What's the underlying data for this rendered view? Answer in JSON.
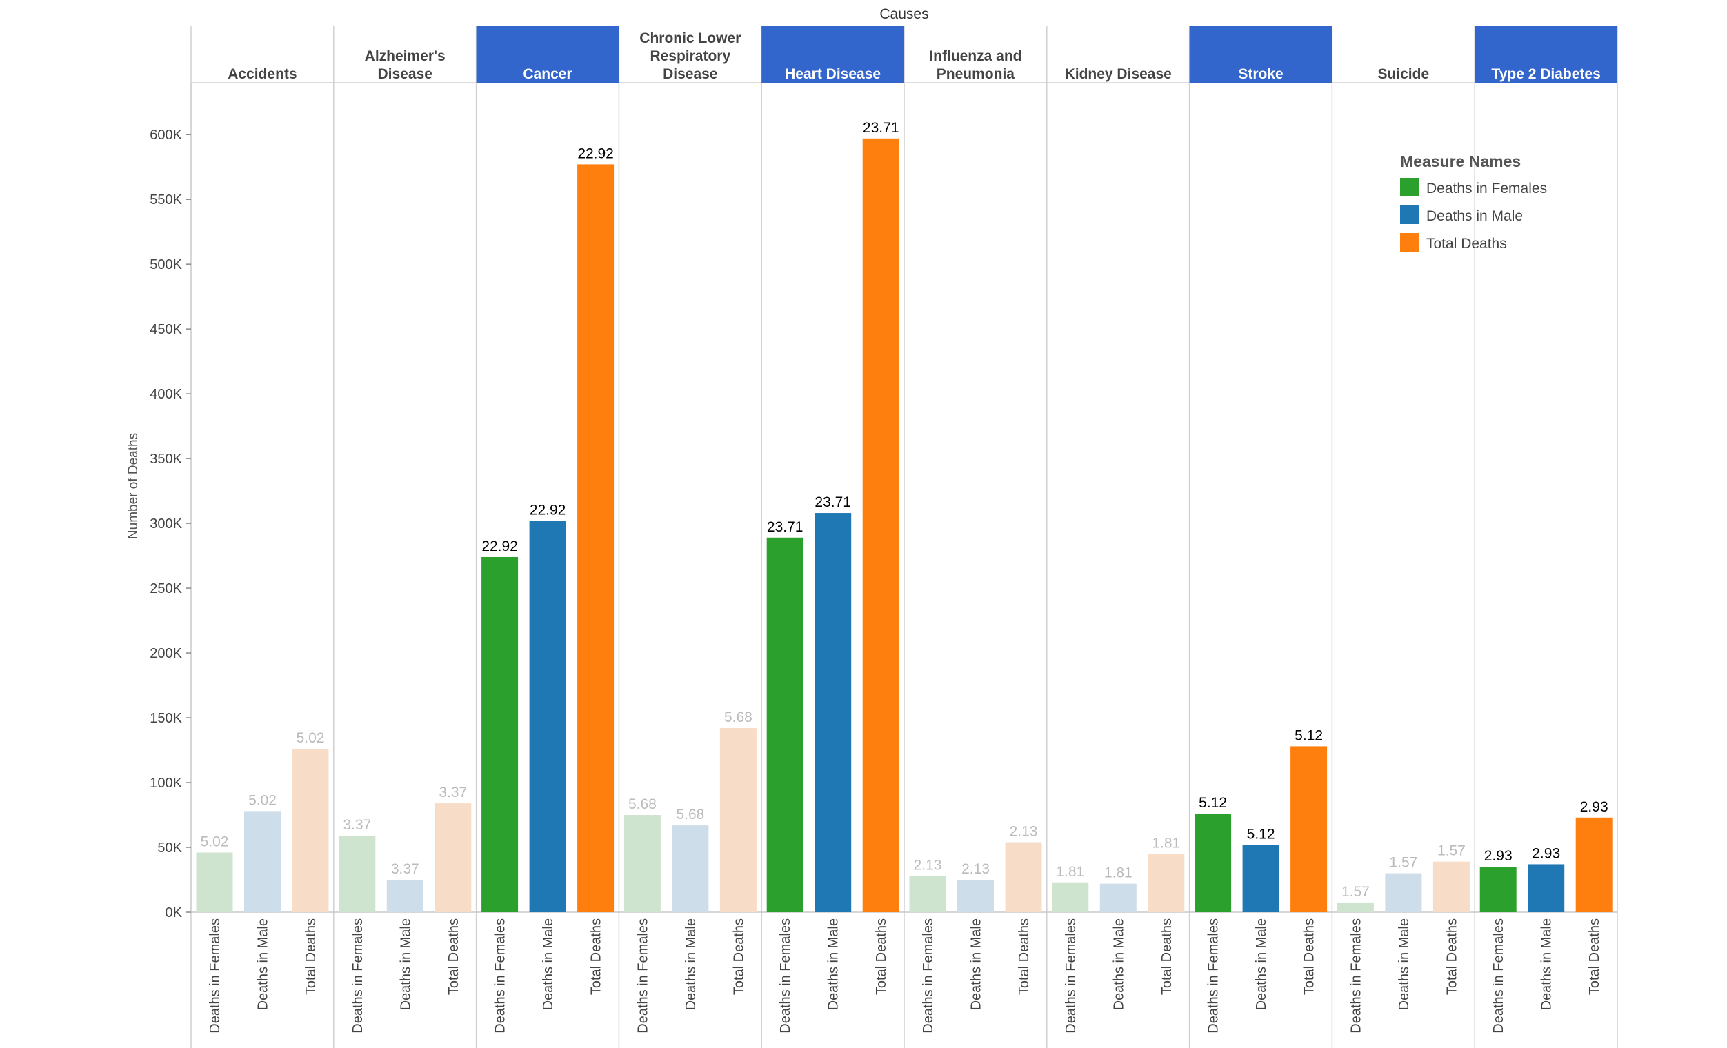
{
  "chart_data": {
    "type": "bar",
    "title": "Causes",
    "ylabel": "Number of Deaths",
    "ylim": [
      0,
      640000
    ],
    "y_ticks": [
      0,
      50000,
      100000,
      150000,
      200000,
      250000,
      300000,
      350000,
      400000,
      450000,
      500000,
      550000,
      600000
    ],
    "y_tick_labels": [
      "0K",
      "50K",
      "100K",
      "150K",
      "200K",
      "250K",
      "300K",
      "350K",
      "400K",
      "450K",
      "500K",
      "550K",
      "600K"
    ],
    "measures": [
      "Deaths in Females",
      "Deaths in Male",
      "Total Deaths"
    ],
    "legend": {
      "title": "Measure Names",
      "placement": "top-right",
      "items": [
        {
          "name": "Deaths in Females",
          "color": "#2ca02c"
        },
        {
          "name": "Deaths in Male",
          "color": "#1f77b4"
        },
        {
          "name": "Total Deaths",
          "color": "#ff7f0e"
        }
      ]
    },
    "faded_colors": [
      "#cfe4cf",
      "#cddde9",
      "#f7dcc8"
    ],
    "highlight_header_color": "#3366cc",
    "grid": false,
    "groups": [
      {
        "label": "Accidents",
        "highlighted": false,
        "values": [
          46000,
          78000,
          126000
        ],
        "data_label": "5.02"
      },
      {
        "label": "Alzheimer's Disease",
        "highlighted": false,
        "values": [
          59000,
          25000,
          84000
        ],
        "data_label": "3.37"
      },
      {
        "label": "Cancer",
        "highlighted": true,
        "values": [
          274000,
          302000,
          577000
        ],
        "data_label": "22.92"
      },
      {
        "label": "Chronic Lower Respiratory Disease",
        "highlighted": false,
        "values": [
          75000,
          67000,
          142000
        ],
        "data_label": "5.68"
      },
      {
        "label": "Heart Disease",
        "highlighted": true,
        "values": [
          289000,
          308000,
          597000
        ],
        "data_label": "23.71"
      },
      {
        "label": "Influenza and Pneumonia",
        "highlighted": false,
        "values": [
          28000,
          25000,
          54000
        ],
        "data_label": "2.13"
      },
      {
        "label": "Kidney Disease",
        "highlighted": false,
        "values": [
          23000,
          22000,
          45000
        ],
        "data_label": "1.81"
      },
      {
        "label": "Stroke",
        "highlighted": true,
        "values": [
          76000,
          52000,
          128000
        ],
        "data_label": "5.12"
      },
      {
        "label": "Suicide",
        "highlighted": false,
        "values": [
          7500,
          30000,
          39000
        ],
        "data_label": "1.57"
      },
      {
        "label": "Type 2 Diabetes",
        "highlighted": true,
        "values": [
          35000,
          37000,
          73000
        ],
        "data_label": "2.93"
      }
    ]
  }
}
